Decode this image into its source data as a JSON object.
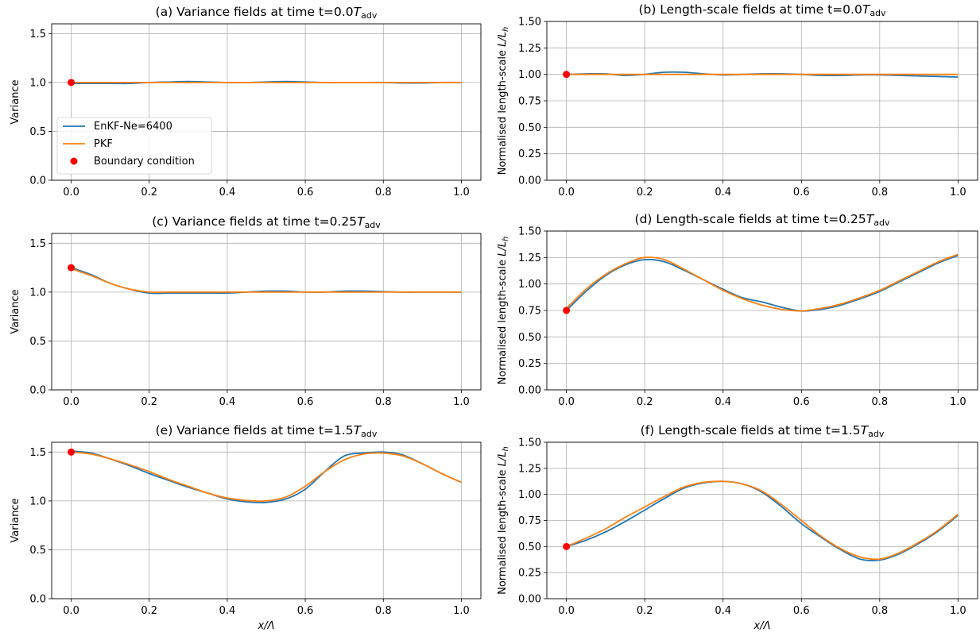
{
  "figure": {
    "legend": [
      {
        "label": "EnKF-Ne=6400",
        "color": "#1f77b4",
        "kind": "line"
      },
      {
        "label": "PKF",
        "color": "#ff7f0e",
        "kind": "line"
      },
      {
        "label": "Boundary condition",
        "color": "#ff0000",
        "kind": "marker"
      }
    ]
  },
  "chart_data": [
    {
      "type": "line",
      "title": "(a) Variance fields at time t=0.0",
      "title_math": "T",
      "title_sub": "adv",
      "xlabel": "",
      "ylabel": "Variance",
      "xlim": [
        -0.05,
        1.05
      ],
      "ylim": [
        0,
        1.6
      ],
      "xticks": [
        0.0,
        0.2,
        0.4,
        0.6,
        0.8,
        1.0
      ],
      "xtick_labels": [
        "0.0",
        "0.2",
        "0.4",
        "0.6",
        "0.8",
        "1.0"
      ],
      "yticks": [
        0.0,
        0.5,
        1.0,
        1.5
      ],
      "ytick_labels": [
        "0.0",
        "0.5",
        "1.0",
        "1.5"
      ],
      "grid": true,
      "legend": "lower-left",
      "series": [
        {
          "name": "EnKF-Ne=6400",
          "color": "#1f77b4",
          "x": [
            0,
            0.05,
            0.1,
            0.15,
            0.2,
            0.25,
            0.3,
            0.35,
            0.4,
            0.45,
            0.5,
            0.55,
            0.6,
            0.65,
            0.7,
            0.75,
            0.8,
            0.85,
            0.9,
            0.95,
            1.0
          ],
          "y": [
            0.99,
            0.99,
            0.99,
            0.99,
            1.0,
            1.005,
            1.01,
            1.005,
            1.0,
            1.0,
            1.005,
            1.01,
            1.005,
            1.0,
            1.0,
            1.0,
            1.0,
            0.995,
            0.995,
            1.0,
            1.0
          ]
        },
        {
          "name": "PKF",
          "color": "#ff7f0e",
          "x": [
            0,
            1.0
          ],
          "y": [
            1.0,
            1.0
          ]
        }
      ],
      "boundary": {
        "x": 0,
        "y": 1.0
      }
    },
    {
      "type": "line",
      "title": "(b) Length-scale fields at time t=0.0",
      "title_math": "T",
      "title_sub": "adv",
      "xlabel": "",
      "ylabel": "Normalised length-scale",
      "ylabel_math": "L/L",
      "ylabel_sub": "h",
      "xlim": [
        -0.05,
        1.05
      ],
      "ylim": [
        0,
        1.5
      ],
      "xticks": [
        0.0,
        0.2,
        0.4,
        0.6,
        0.8,
        1.0
      ],
      "xtick_labels": [
        "0.0",
        "0.2",
        "0.4",
        "0.6",
        "0.8",
        "1.0"
      ],
      "yticks": [
        0.0,
        0.25,
        0.5,
        0.75,
        1.0,
        1.25,
        1.5
      ],
      "ytick_labels": [
        "0.00",
        "0.25",
        "0.50",
        "0.75",
        "1.00",
        "1.25",
        "1.50"
      ],
      "grid": true,
      "series": [
        {
          "name": "EnKF-Ne=6400",
          "color": "#1f77b4",
          "x": [
            0,
            0.05,
            0.1,
            0.15,
            0.2,
            0.25,
            0.3,
            0.35,
            0.4,
            0.45,
            0.5,
            0.55,
            0.6,
            0.65,
            0.7,
            0.75,
            0.8,
            0.85,
            0.9,
            0.95,
            1.0
          ],
          "y": [
            1.0,
            1.005,
            1.005,
            0.99,
            1.0,
            1.02,
            1.02,
            1.005,
            0.995,
            1.0,
            1.005,
            1.005,
            1.0,
            0.99,
            0.99,
            0.995,
            0.995,
            0.99,
            0.985,
            0.98,
            0.975
          ]
        },
        {
          "name": "PKF",
          "color": "#ff7f0e",
          "x": [
            0,
            1.0
          ],
          "y": [
            1.0,
            1.0
          ]
        }
      ],
      "boundary": {
        "x": 0,
        "y": 1.0
      }
    },
    {
      "type": "line",
      "title": "(c) Variance fields at time t=0.25",
      "title_math": "T",
      "title_sub": "adv",
      "xlabel": "",
      "ylabel": "Variance",
      "xlim": [
        -0.05,
        1.05
      ],
      "ylim": [
        0,
        1.6
      ],
      "xticks": [
        0.0,
        0.2,
        0.4,
        0.6,
        0.8,
        1.0
      ],
      "xtick_labels": [
        "0.0",
        "0.2",
        "0.4",
        "0.6",
        "0.8",
        "1.0"
      ],
      "yticks": [
        0.0,
        0.5,
        1.0,
        1.5
      ],
      "ytick_labels": [
        "0.0",
        "0.5",
        "1.0",
        "1.5"
      ],
      "grid": true,
      "series": [
        {
          "name": "EnKF-Ne=6400",
          "color": "#1f77b4",
          "x": [
            0,
            0.05,
            0.1,
            0.15,
            0.2,
            0.25,
            0.3,
            0.35,
            0.4,
            0.45,
            0.5,
            0.55,
            0.6,
            0.65,
            0.7,
            0.75,
            0.8,
            0.85,
            0.9,
            0.95,
            1.0
          ],
          "y": [
            1.25,
            1.18,
            1.09,
            1.03,
            0.99,
            0.99,
            0.99,
            0.99,
            0.99,
            1.0,
            1.01,
            1.01,
            1.0,
            1.0,
            1.01,
            1.01,
            1.005,
            1.0,
            1.0,
            1.0,
            1.0
          ]
        },
        {
          "name": "PKF",
          "color": "#ff7f0e",
          "x": [
            0,
            0.05,
            0.1,
            0.15,
            0.2,
            0.25,
            0.3,
            0.35,
            0.4,
            0.45,
            0.5,
            0.55,
            0.6,
            0.65,
            0.7,
            0.75,
            0.8,
            0.85,
            0.9,
            0.95,
            1.0
          ],
          "y": [
            1.24,
            1.17,
            1.09,
            1.03,
            1.0,
            1.0,
            1.0,
            1.0,
            1.0,
            1.0,
            1.0,
            1.0,
            1.0,
            1.0,
            1.0,
            1.0,
            1.0,
            1.0,
            1.0,
            1.0,
            1.0
          ]
        }
      ],
      "boundary": {
        "x": 0,
        "y": 1.25
      }
    },
    {
      "type": "line",
      "title": "(d) Length-scale fields at time t=0.25",
      "title_math": "T",
      "title_sub": "adv",
      "xlabel": "",
      "ylabel": "Normalised length-scale",
      "ylabel_math": "L/L",
      "ylabel_sub": "h",
      "xlim": [
        -0.05,
        1.05
      ],
      "ylim": [
        0,
        1.5
      ],
      "xticks": [
        0.0,
        0.2,
        0.4,
        0.6,
        0.8,
        1.0
      ],
      "xtick_labels": [
        "0.0",
        "0.2",
        "0.4",
        "0.6",
        "0.8",
        "1.0"
      ],
      "yticks": [
        0.0,
        0.25,
        0.5,
        0.75,
        1.0,
        1.25,
        1.5
      ],
      "ytick_labels": [
        "0.00",
        "0.25",
        "0.50",
        "0.75",
        "1.00",
        "1.25",
        "1.50"
      ],
      "grid": true,
      "series": [
        {
          "name": "EnKF-Ne=6400",
          "color": "#1f77b4",
          "x": [
            0,
            0.05,
            0.1,
            0.15,
            0.2,
            0.25,
            0.3,
            0.35,
            0.4,
            0.45,
            0.5,
            0.55,
            0.6,
            0.65,
            0.7,
            0.75,
            0.8,
            0.85,
            0.9,
            0.95,
            1.0
          ],
          "y": [
            0.75,
            0.93,
            1.08,
            1.18,
            1.23,
            1.21,
            1.13,
            1.04,
            0.95,
            0.87,
            0.83,
            0.78,
            0.745,
            0.76,
            0.8,
            0.86,
            0.93,
            1.02,
            1.11,
            1.2,
            1.27
          ]
        },
        {
          "name": "PKF",
          "color": "#ff7f0e",
          "x": [
            0,
            0.05,
            0.1,
            0.15,
            0.2,
            0.25,
            0.3,
            0.35,
            0.4,
            0.45,
            0.5,
            0.55,
            0.6,
            0.65,
            0.7,
            0.75,
            0.8,
            0.85,
            0.9,
            0.95,
            1.0
          ],
          "y": [
            0.77,
            0.95,
            1.09,
            1.19,
            1.25,
            1.23,
            1.14,
            1.04,
            0.94,
            0.86,
            0.8,
            0.76,
            0.745,
            0.77,
            0.81,
            0.87,
            0.94,
            1.03,
            1.12,
            1.21,
            1.28
          ]
        }
      ],
      "boundary": {
        "x": 0,
        "y": 0.75
      }
    },
    {
      "type": "line",
      "title": "(e) Variance fields at time t=1.5",
      "title_math": "T",
      "title_sub": "adv",
      "xlabel": "x/Λ",
      "ylabel": "Variance",
      "xlim": [
        -0.05,
        1.05
      ],
      "ylim": [
        0,
        1.6
      ],
      "xticks": [
        0.0,
        0.2,
        0.4,
        0.6,
        0.8,
        1.0
      ],
      "xtick_labels": [
        "0.0",
        "0.2",
        "0.4",
        "0.6",
        "0.8",
        "1.0"
      ],
      "yticks": [
        0.0,
        0.5,
        1.0,
        1.5
      ],
      "ytick_labels": [
        "0.0",
        "0.5",
        "1.0",
        "1.5"
      ],
      "grid": true,
      "series": [
        {
          "name": "EnKF-Ne=6400",
          "color": "#1f77b4",
          "x": [
            0,
            0.05,
            0.1,
            0.15,
            0.2,
            0.25,
            0.3,
            0.35,
            0.4,
            0.45,
            0.5,
            0.55,
            0.6,
            0.65,
            0.7,
            0.75,
            0.8,
            0.85,
            0.9,
            0.95,
            1.0
          ],
          "y": [
            1.51,
            1.49,
            1.43,
            1.36,
            1.28,
            1.21,
            1.14,
            1.08,
            1.02,
            0.99,
            0.985,
            1.02,
            1.12,
            1.3,
            1.46,
            1.49,
            1.5,
            1.47,
            1.38,
            1.28,
            1.19
          ]
        },
        {
          "name": "PKF",
          "color": "#ff7f0e",
          "x": [
            0,
            0.05,
            0.1,
            0.15,
            0.2,
            0.25,
            0.3,
            0.35,
            0.4,
            0.45,
            0.5,
            0.55,
            0.6,
            0.65,
            0.7,
            0.75,
            0.8,
            0.85,
            0.9,
            0.95,
            1.0
          ],
          "y": [
            1.5,
            1.48,
            1.43,
            1.37,
            1.3,
            1.22,
            1.15,
            1.08,
            1.03,
            1.005,
            1.0,
            1.04,
            1.15,
            1.3,
            1.42,
            1.48,
            1.49,
            1.46,
            1.38,
            1.28,
            1.19
          ]
        }
      ],
      "boundary": {
        "x": 0,
        "y": 1.5
      }
    },
    {
      "type": "line",
      "title": "(f) Length-scale fields at time t=1.5",
      "title_math": "T",
      "title_sub": "adv",
      "xlabel": "x/Λ",
      "ylabel": "Normalised length-scale",
      "ylabel_math": "L/L",
      "ylabel_sub": "h",
      "xlim": [
        -0.05,
        1.05
      ],
      "ylim": [
        0,
        1.5
      ],
      "xticks": [
        0.0,
        0.2,
        0.4,
        0.6,
        0.8,
        1.0
      ],
      "xtick_labels": [
        "0.0",
        "0.2",
        "0.4",
        "0.6",
        "0.8",
        "1.0"
      ],
      "yticks": [
        0.0,
        0.25,
        0.5,
        0.75,
        1.0,
        1.25,
        1.5
      ],
      "ytick_labels": [
        "0.00",
        "0.25",
        "0.50",
        "0.75",
        "1.00",
        "1.25",
        "1.50"
      ],
      "grid": true,
      "series": [
        {
          "name": "EnKF-Ne=6400",
          "color": "#1f77b4",
          "x": [
            0,
            0.05,
            0.1,
            0.15,
            0.2,
            0.25,
            0.3,
            0.35,
            0.4,
            0.45,
            0.5,
            0.55,
            0.6,
            0.65,
            0.7,
            0.75,
            0.8,
            0.85,
            0.9,
            0.95,
            1.0
          ],
          "y": [
            0.5,
            0.56,
            0.64,
            0.74,
            0.85,
            0.96,
            1.06,
            1.11,
            1.125,
            1.1,
            1.02,
            0.88,
            0.72,
            0.59,
            0.47,
            0.38,
            0.37,
            0.43,
            0.53,
            0.65,
            0.8
          ]
        },
        {
          "name": "PKF",
          "color": "#ff7f0e",
          "x": [
            0,
            0.05,
            0.1,
            0.15,
            0.2,
            0.25,
            0.3,
            0.35,
            0.4,
            0.45,
            0.5,
            0.55,
            0.6,
            0.65,
            0.7,
            0.75,
            0.8,
            0.85,
            0.9,
            0.95,
            1.0
          ],
          "y": [
            0.5,
            0.58,
            0.67,
            0.78,
            0.88,
            0.98,
            1.07,
            1.115,
            1.125,
            1.1,
            1.03,
            0.9,
            0.75,
            0.6,
            0.48,
            0.4,
            0.38,
            0.44,
            0.54,
            0.66,
            0.81
          ]
        }
      ],
      "boundary": {
        "x": 0,
        "y": 0.5
      }
    }
  ]
}
